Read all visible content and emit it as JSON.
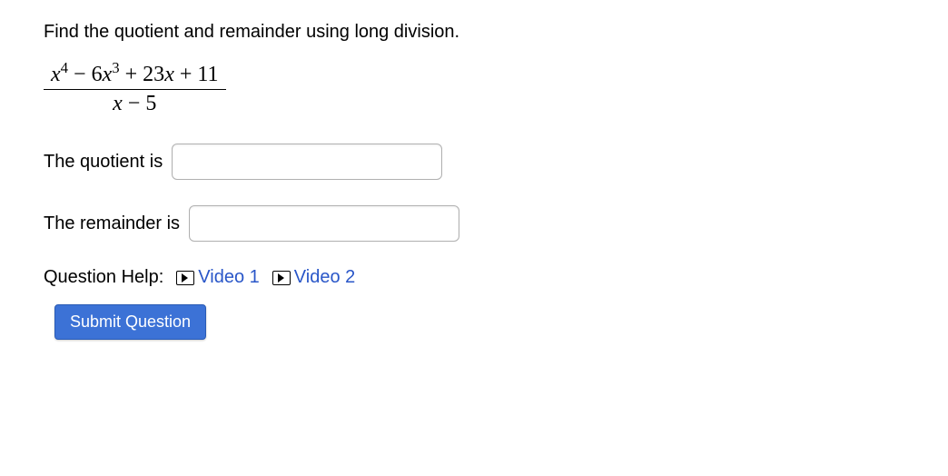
{
  "prompt": "Find the quotient and remainder using long division.",
  "fraction": {
    "numerator_html": "x⁴ − 6x³ + 23x + 11",
    "denominator_html": "x − 5"
  },
  "quotient": {
    "label": "The quotient is",
    "value": "",
    "placeholder": ""
  },
  "remainder": {
    "label": "The remainder is",
    "value": "",
    "placeholder": ""
  },
  "help": {
    "label": "Question Help:",
    "links": {
      "video1": "Video 1",
      "video2": "Video 2"
    }
  },
  "submit": {
    "label": "Submit Question"
  }
}
